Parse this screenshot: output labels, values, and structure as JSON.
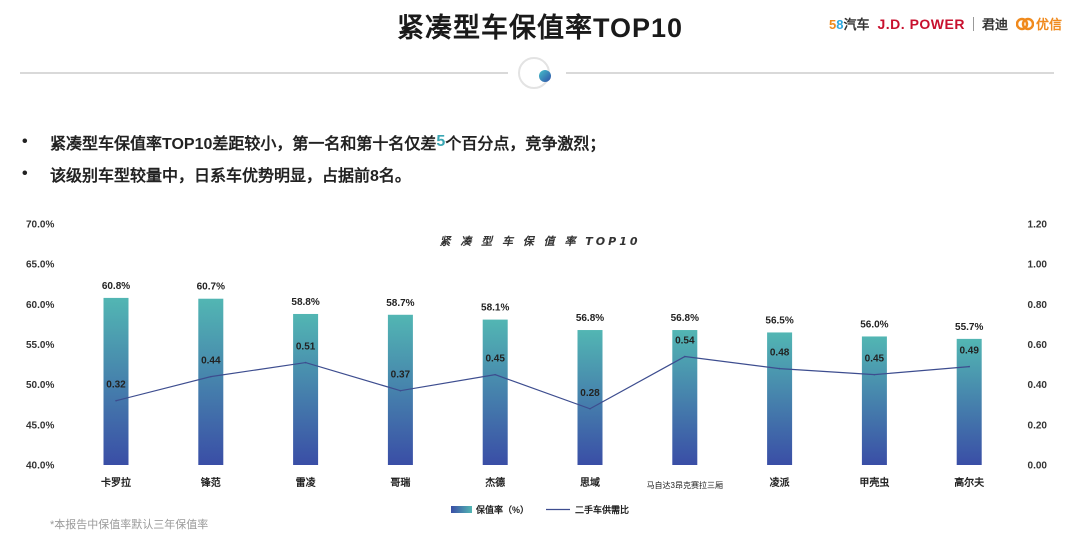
{
  "header": {
    "title": "紧凑型车保值率TOP10",
    "logos": {
      "logo_58_a": "5",
      "logo_58_b": "8",
      "logo_58_c": "汽车",
      "jdpower": "J.D. POWER",
      "jundi": "君迪",
      "youxin": "优信"
    }
  },
  "bullets": {
    "b1_pre": "紧凑型车保值率TOP10差距较小，第一名和第十名仅差",
    "b1_hl": "5",
    "b1_post": "个百分点，竞争激烈；",
    "b2": "该级别车型较量中，日系车优势明显，占据前8名。",
    "mark": "•"
  },
  "colors": {
    "bar_top": "#52b6b3",
    "bar_bottom": "#3a4ea6",
    "line": "#3d4d8f",
    "highlight": "#3aa7b4"
  },
  "chart_data": {
    "type": "bar+line",
    "title": "紧 凑 型 车 保 值 率 TOP10",
    "categories": [
      "卡罗拉",
      "锋范",
      "雷凌",
      "哥瑞",
      "杰德",
      "思域",
      "马自达3昂克赛拉三厢",
      "凌派",
      "甲壳虫",
      "高尔夫"
    ],
    "series": [
      {
        "name": "保值率（%）",
        "type": "bar",
        "axis": "left",
        "values": [
          60.8,
          60.7,
          58.8,
          58.7,
          58.1,
          56.8,
          56.8,
          56.5,
          56.0,
          55.7
        ],
        "labels": [
          "60.8%",
          "60.7%",
          "58.8%",
          "58.7%",
          "58.1%",
          "56.8%",
          "56.8%",
          "56.5%",
          "56.0%",
          "55.7%"
        ]
      },
      {
        "name": "二手车供需比",
        "type": "line",
        "axis": "right",
        "values": [
          0.32,
          0.44,
          0.51,
          0.37,
          0.45,
          0.28,
          0.54,
          0.48,
          0.45,
          0.49
        ],
        "labels": [
          "0.32",
          "0.44",
          "0.51",
          "0.37",
          "0.45",
          "0.28",
          "0.54",
          "0.48",
          "0.45",
          "0.49"
        ]
      }
    ],
    "left_axis": {
      "range": [
        40,
        70
      ],
      "ticks": [
        40,
        45,
        50,
        55,
        60,
        65,
        70
      ],
      "tick_labels": [
        "40.0%",
        "45.0%",
        "50.0%",
        "55.0%",
        "60.0%",
        "65.0%",
        "70.0%"
      ]
    },
    "right_axis": {
      "range": [
        0,
        1.2
      ],
      "ticks": [
        0,
        0.2,
        0.4,
        0.6,
        0.8,
        1.0,
        1.2
      ],
      "tick_labels": [
        "0.00",
        "0.20",
        "0.40",
        "0.60",
        "0.80",
        "1.00",
        "1.20"
      ]
    },
    "legend": {
      "position": "bottom-center",
      "items": [
        "保值率（%）",
        "二手车供需比"
      ]
    },
    "grid": false
  },
  "footnote": "*本报告中保值率默认三年保值率"
}
